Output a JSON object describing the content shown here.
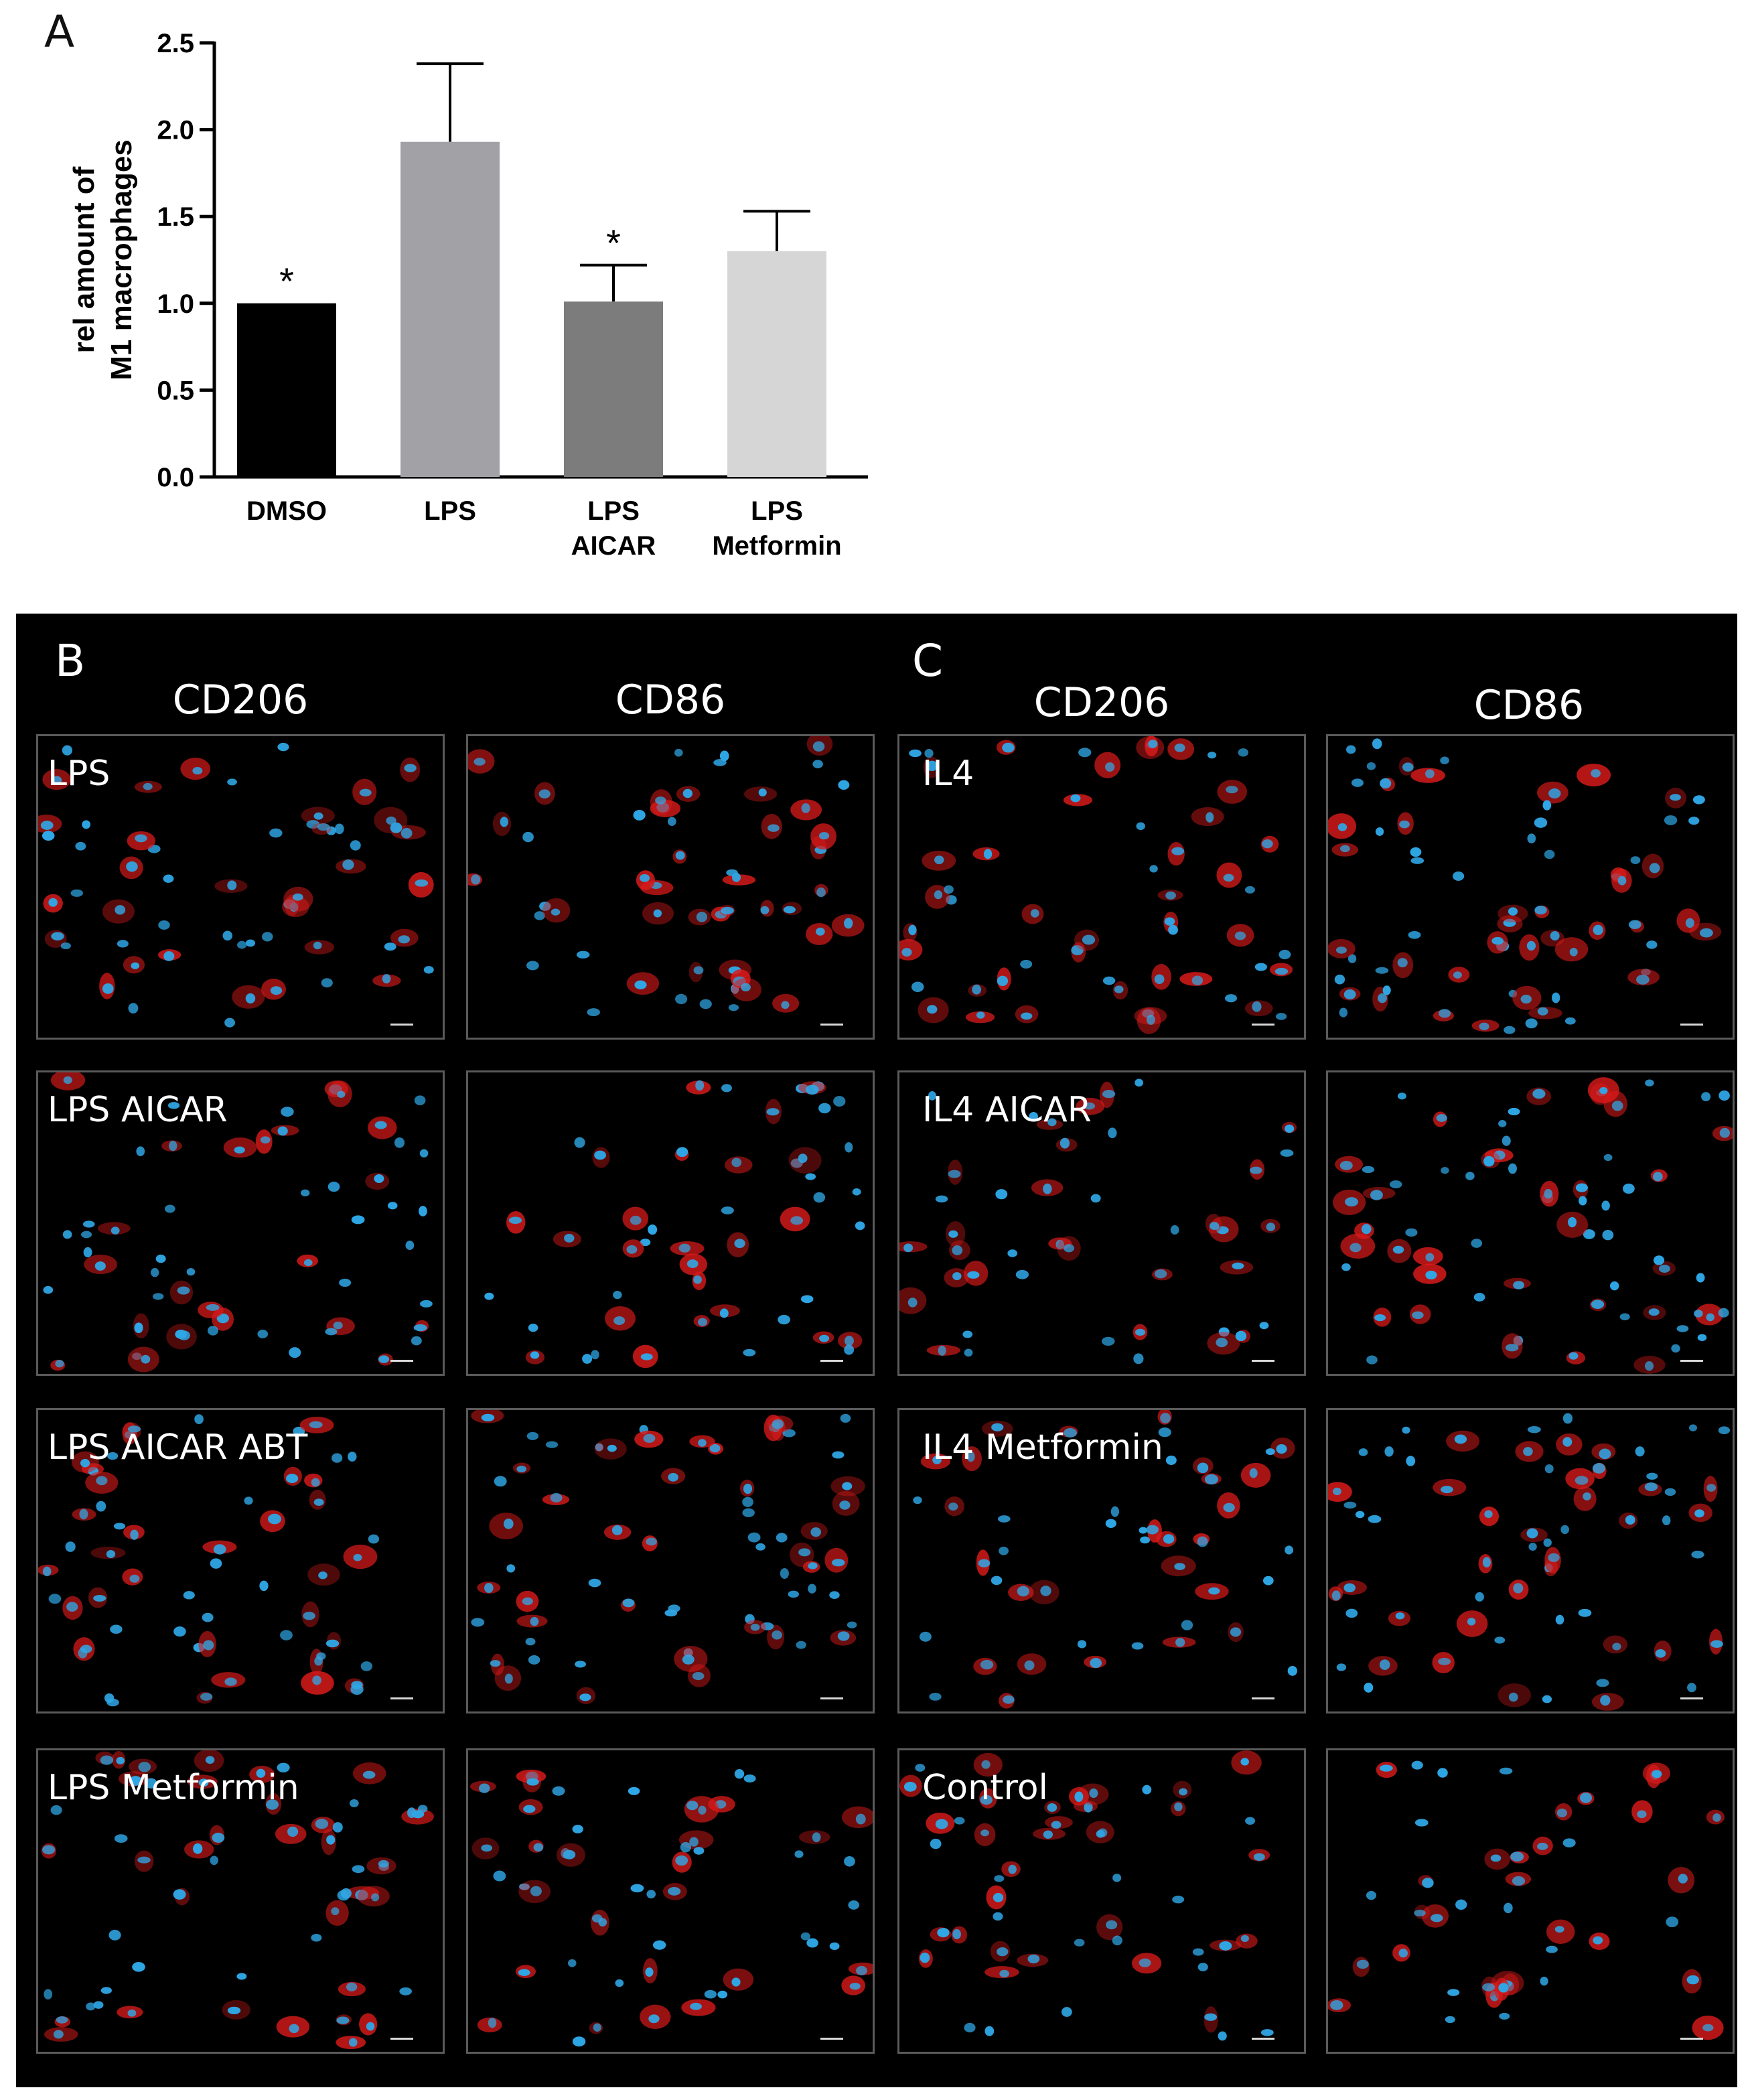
{
  "panel_a_letter": "A",
  "chart_data": {
    "type": "bar",
    "categories": [
      [
        "DMSO"
      ],
      [
        "LPS"
      ],
      [
        "LPS",
        "AICAR"
      ],
      [
        "LPS",
        "Metformin"
      ]
    ],
    "values": [
      1.0,
      1.93,
      1.01,
      1.3
    ],
    "error_upper": [
      0,
      0.45,
      0.21,
      0.23
    ],
    "significance": [
      "*",
      "",
      "*",
      ""
    ],
    "bar_colors": [
      "#000000",
      "#a2a2a6",
      "#7c7c7c",
      "#d6d6d6"
    ],
    "ylabel": [
      "rel amount of",
      "M1 macrophages"
    ],
    "xlabel": "",
    "ylim": [
      0,
      2.5
    ],
    "yticks": [
      "0.0",
      "0.5",
      "1.0",
      "1.5",
      "2.0",
      "2.5"
    ],
    "grid": false,
    "legend": "none"
  },
  "microscopy": {
    "section_b_letter": "B",
    "section_c_letter": "C",
    "b_headers": [
      "CD206",
      "CD86"
    ],
    "c_headers": [
      "CD206",
      "CD86"
    ],
    "b_labels": [
      "LPS",
      "LPS AICAR",
      "LPS AICAR ABT",
      "LPS Metformin"
    ],
    "c_labels": [
      "IL4",
      "IL4 AICAR",
      "IL4 Metformin",
      "Control"
    ],
    "nucleus_color": "#2fa7e6",
    "stain_color": "#d91a1a",
    "background_color": "#000000"
  }
}
